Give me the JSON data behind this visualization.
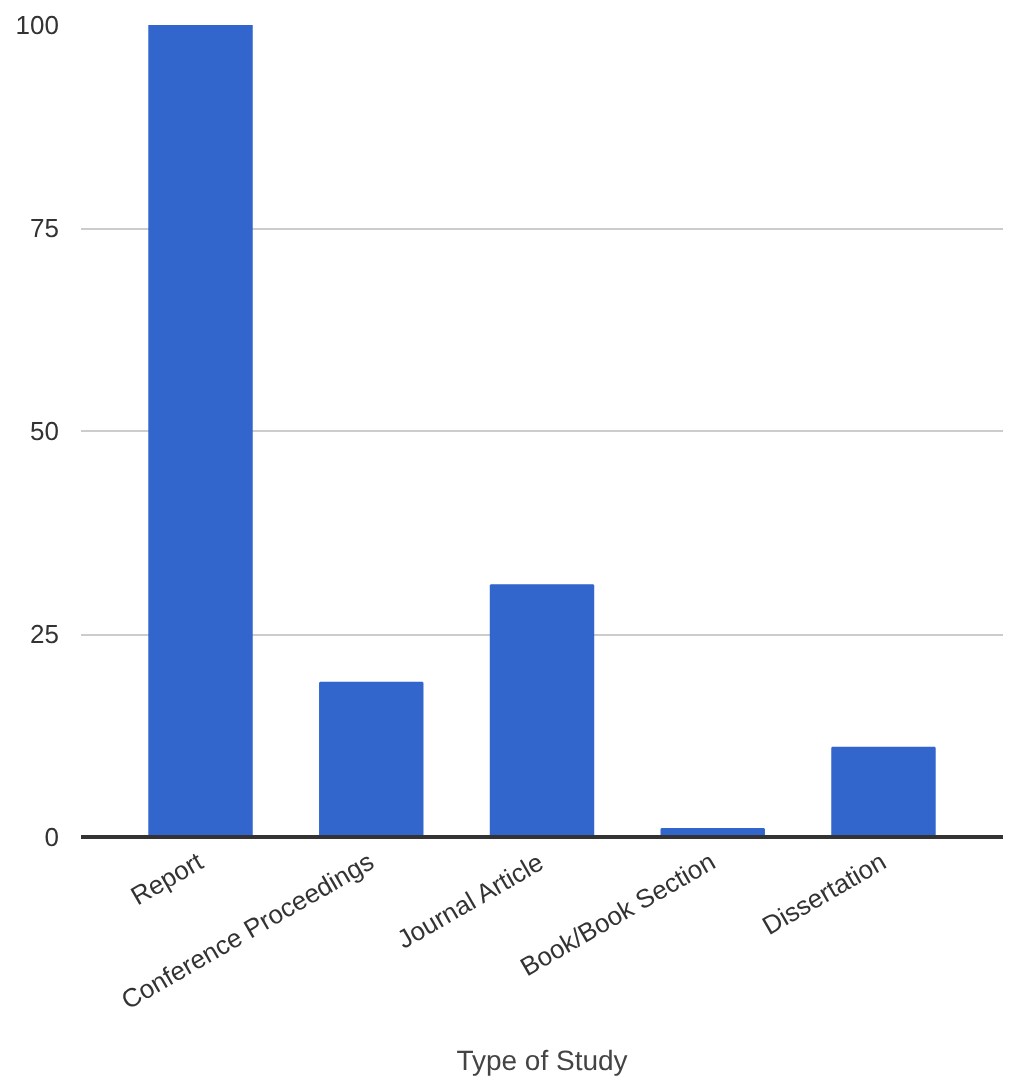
{
  "chart_data": {
    "type": "bar",
    "xlabel": "Type of Study",
    "categories": [
      "Report",
      "Conference Proceedings",
      "Journal Article",
      "Book/Book Section",
      "Dissertation"
    ],
    "values": [
      100,
      19,
      31,
      1,
      11
    ],
    "color": "#3366cc",
    "ylim": [
      0,
      100
    ],
    "yticks": [
      0,
      25,
      50,
      75,
      100
    ],
    "grid": "y"
  }
}
